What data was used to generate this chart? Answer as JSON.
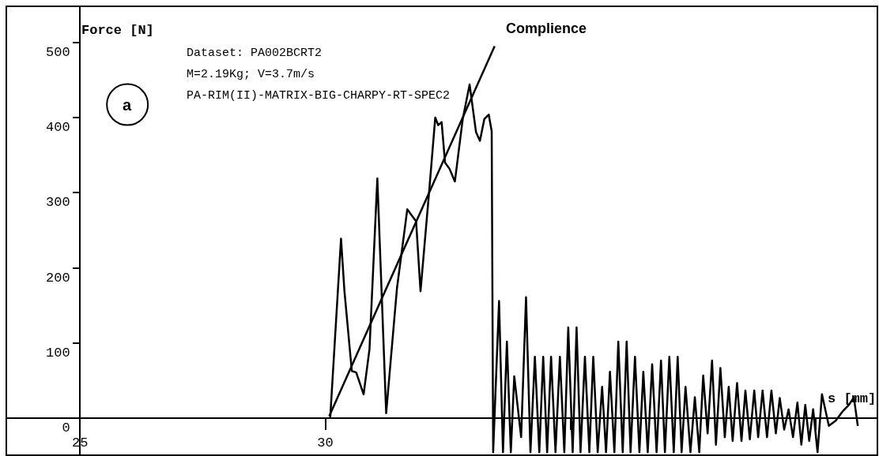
{
  "chart_data": {
    "type": "line",
    "xlabel": "s [mm]",
    "ylabel": "Force [N]",
    "xlim": [
      23.5,
      41.25
    ],
    "ylim": [
      -49,
      548
    ],
    "xticks": [
      25,
      30,
      {
        "value": 35,
        "label": null
      },
      {
        "value": 40,
        "label": null
      }
    ],
    "yticks": [
      0,
      100,
      200,
      300,
      400,
      500
    ],
    "marker": "none",
    "line_style": "solid",
    "annotations": [
      "Dataset: PA002BCRT2",
      "M=2.19Kg; V=3.7m/s",
      "PA-RIM(II)-MATRIX-BIG-CHARPY-RT-SPEC2",
      "Complience",
      "a"
    ],
    "series": [
      {
        "color": "#000000",
        "x": [
          30.1,
          30.32,
          30.39,
          30.54,
          30.63,
          30.78,
          30.9,
          31.06,
          31.24,
          31.46,
          31.67,
          31.76,
          31.85,
          31.94,
          32.12,
          32.24,
          32.3,
          32.37,
          32.44,
          32.53,
          32.64,
          32.8,
          32.94,
          33.07,
          33.15,
          33.24,
          33.33,
          33.39,
          33.42,
          33.54,
          33.62,
          33.7,
          33.78,
          33.85,
          33.99,
          34.09,
          34.18,
          34.27,
          34.36,
          34.44,
          34.52,
          34.6,
          34.69,
          34.78,
          34.87,
          34.95,
          35.04,
          35.12,
          35.2,
          35.29,
          35.38,
          35.46,
          35.55,
          35.64,
          35.72,
          35.8,
          35.89,
          35.97,
          36.06,
          36.14,
          36.22,
          36.31,
          36.4,
          36.48,
          36.57,
          36.66,
          36.75,
          36.84,
          36.92,
          37.01,
          37.1,
          37.18,
          37.26,
          37.34,
          37.44,
          37.53,
          37.62,
          37.7,
          37.79,
          37.88,
          37.96,
          38.05,
          38.14,
          38.22,
          38.3,
          38.39,
          38.48,
          38.56,
          38.65,
          38.74,
          38.82,
          38.91,
          39.0,
          39.09,
          39.18,
          39.26,
          39.35,
          39.44,
          39.53,
          39.62,
          39.7,
          39.78,
          39.86,
          39.94,
          40.03,
          40.12,
          40.26,
          40.4,
          40.55,
          40.67,
          40.77,
          40.85
        ],
        "values": [
          1,
          239,
          169,
          63,
          61,
          32,
          92,
          319,
          7,
          173,
          278,
          270,
          262,
          169,
          305,
          400,
          390,
          394,
          340,
          332,
          315,
          398,
          444,
          381,
          369,
          398,
          404,
          382,
          -45,
          156,
          -45,
          102,
          -45,
          56,
          -25,
          161,
          -45,
          82,
          -45,
          82,
          -45,
          82,
          -45,
          82,
          -45,
          121,
          -45,
          121,
          -45,
          82,
          -45,
          82,
          -45,
          42,
          -45,
          62,
          -45,
          102,
          -45,
          102,
          -45,
          82,
          -45,
          62,
          -45,
          72,
          -45,
          77,
          -45,
          82,
          -45,
          82,
          -45,
          42,
          -45,
          28,
          -45,
          57,
          -20,
          77,
          -35,
          67,
          -25,
          42,
          -30,
          47,
          -30,
          37,
          -28,
          37,
          -25,
          37,
          -25,
          37,
          -20,
          27,
          -15,
          12,
          -25,
          21,
          -35,
          18,
          -30,
          12,
          -45,
          32,
          -10,
          -3,
          10,
          18,
          28,
          -10
        ]
      },
      {
        "color": "#000000",
        "x": [
          30.08,
          33.45
        ],
        "values": [
          3,
          495
        ]
      }
    ]
  }
}
